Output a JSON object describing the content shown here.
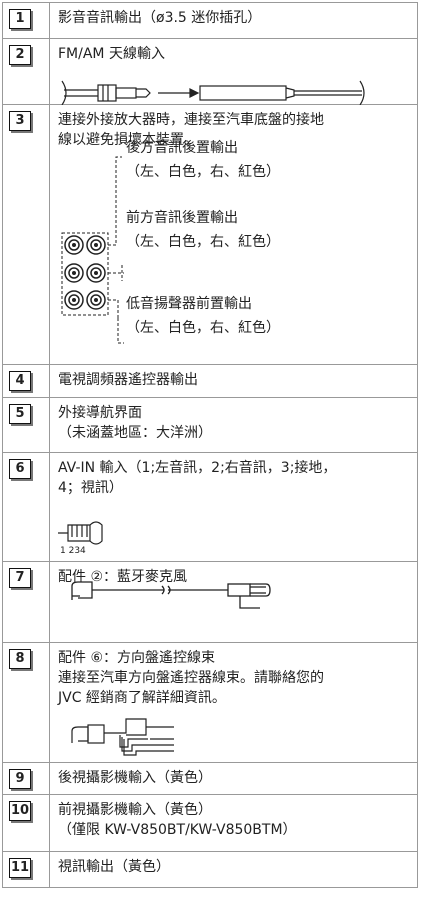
{
  "rows": [
    {
      "number": "1",
      "lines": [
        "影音音訊輸出（ø3.5 迷你插孔）"
      ]
    },
    {
      "number": "2",
      "lines": [
        "FM/AM 天線輸入"
      ]
    },
    {
      "number": "3",
      "lines": [
        "連接外接放大器時，連接至汽車底盤的接地",
        "線以避免損壞本裝置。"
      ],
      "labels": [
        [
          "後方音訊後置輸出",
          "（左、白色，右、紅色）"
        ],
        [
          "前方音訊後置輸出",
          "（左、白色，右、紅色）"
        ],
        [
          "低音揚聲器前置輸出",
          "（左、白色，右、紅色）"
        ]
      ]
    },
    {
      "number": "4",
      "lines": [
        "電視調頻器遙控器輸出"
      ]
    },
    {
      "number": "5",
      "lines": [
        "外接導航界面",
        "（未涵蓋地區：大洋洲）"
      ]
    },
    {
      "number": "6",
      "lines": [
        "AV-IN 輸入（1;左音訊，2;右音訊，3;接地，",
        "4；視訊）"
      ],
      "plug_label": "1 234"
    },
    {
      "number": "7",
      "lines": [
        "配件 ②：藍牙麥克風"
      ]
    },
    {
      "number": "8",
      "lines": [
        "配件 ⑥：方向盤遙控線束",
        "連接至汽車方向盤遙控器線束。請聯絡您的",
        "JVC 經銷商了解詳細資訊。"
      ]
    },
    {
      "number": "9",
      "lines": [
        "後視攝影機輸入（黃色）"
      ]
    },
    {
      "number": "10",
      "lines": [
        "前視攝影機輸入（黃色）",
        "（僅限 KW-V850BT/KW-V850BTM）"
      ]
    },
    {
      "number": "11",
      "lines": [
        "視訊輸出（黃色）"
      ]
    }
  ]
}
